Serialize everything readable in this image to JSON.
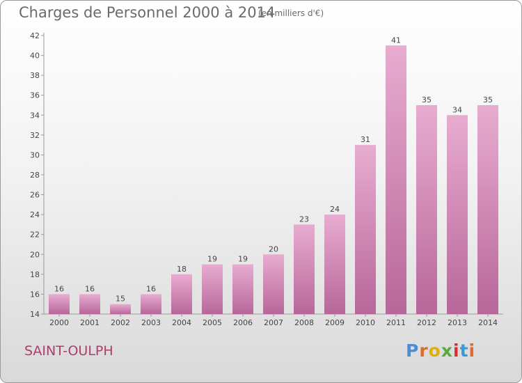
{
  "header": {
    "title": "Charges de Personnel 2000 à 2014",
    "unit": "(en milliers d'€)"
  },
  "footer": {
    "town": "SAINT-OULPH",
    "logo_text": "Proxiti"
  },
  "colors": {
    "bar_light": "#e8acd0",
    "bar_dark": "#b7679a",
    "town": "#b03c6c",
    "logo": [
      "#4a8ed8",
      "#e06a2a",
      "#e0b000",
      "#5aaa3a",
      "#d83030",
      "#3a9ad8",
      "#e06a2a"
    ]
  },
  "chart_data": {
    "type": "bar",
    "categories": [
      "2000",
      "2001",
      "2002",
      "2003",
      "2004",
      "2005",
      "2006",
      "2007",
      "2008",
      "2009",
      "2010",
      "2011",
      "2012",
      "2013",
      "2014"
    ],
    "values": [
      16,
      16,
      15,
      16,
      18,
      19,
      19,
      20,
      23,
      24,
      31,
      41,
      35,
      34,
      35
    ],
    "title": "Charges de Personnel 2000 à 2014",
    "xlabel": "",
    "ylabel": "",
    "ylim": [
      14,
      42
    ],
    "yticks": [
      14,
      16,
      18,
      20,
      22,
      24,
      26,
      28,
      30,
      32,
      34,
      36,
      38,
      40,
      42
    ],
    "grid": false,
    "legend": "none"
  }
}
